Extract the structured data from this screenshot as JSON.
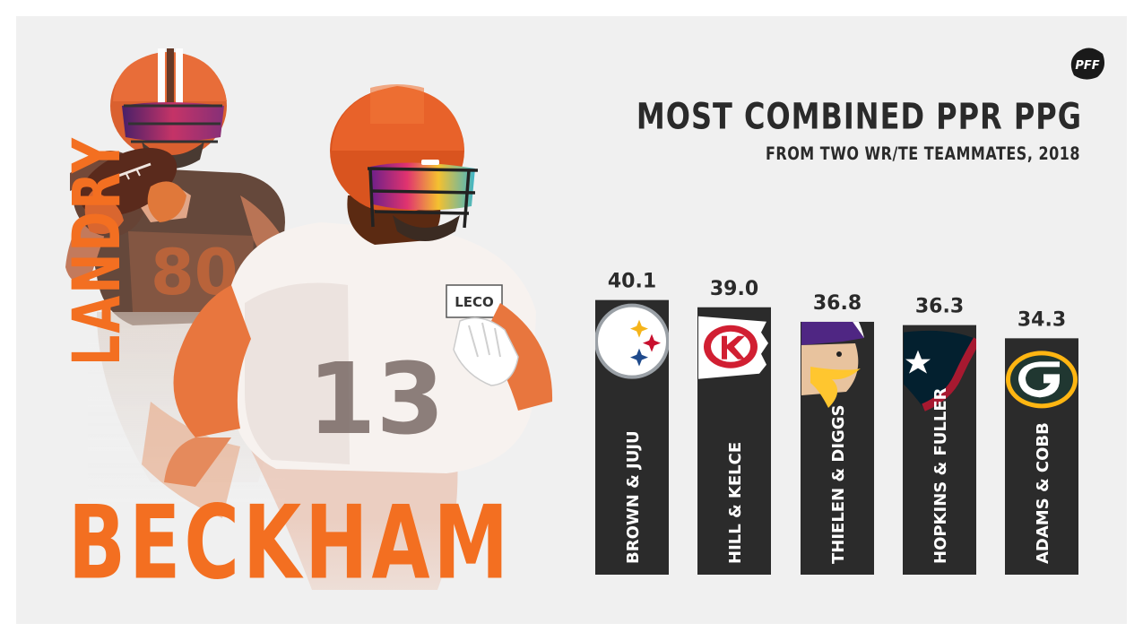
{
  "brand": {
    "logo_text": "PFF",
    "accent_color": "#f36f21",
    "bar_color": "#2b2b2b"
  },
  "player": {
    "first_name": "LANDRY",
    "last_name": "BECKHAM",
    "jersey_numbers": [
      "80",
      "13"
    ],
    "banner_text": "LECO"
  },
  "chart_data": {
    "type": "bar",
    "title": "MOST COMBINED PPR PPG",
    "subtitle": "FROM TWO WR/TE TEAMMATES, 2018",
    "categories": [
      "BROWN & JUJU",
      "HILL & KELCE",
      "THIELEN & DIGGS",
      "HOPKINS & FULLER",
      "ADAMS & COBB"
    ],
    "values": [
      40.1,
      39.0,
      36.8,
      36.3,
      34.3
    ],
    "value_labels": [
      "40.1",
      "39.0",
      "36.8",
      "36.3",
      "34.3"
    ],
    "teams": [
      "Steelers",
      "Chiefs",
      "Vikings",
      "Texans",
      "Packers"
    ],
    "team_icons": [
      "steelers-logo-icon",
      "chiefs-logo-icon",
      "vikings-logo-icon",
      "texans-logo-icon",
      "packers-logo-icon"
    ],
    "xlabel": "",
    "ylabel": "",
    "grid": false,
    "legend": "none"
  }
}
